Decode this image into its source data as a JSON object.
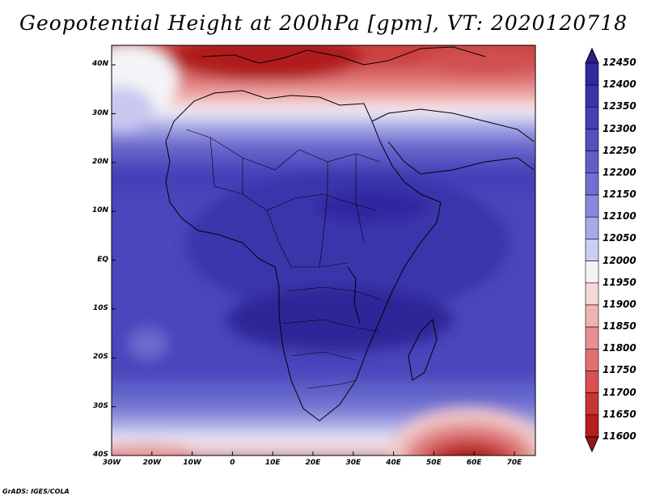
{
  "title": "Geopotential Height at 200hPa [gpm], VT: 2020120718",
  "credit": "GrADS: IGES/COLA",
  "map": {
    "lon_labels": [
      "30W",
      "20W",
      "10W",
      "0",
      "10E",
      "20E",
      "30E",
      "40E",
      "50E",
      "60E",
      "70E"
    ],
    "lat_labels": [
      "40N",
      "30N",
      "20N",
      "10N",
      "EQ",
      "10S",
      "20S",
      "30S",
      "40S"
    ],
    "lon_range": [
      -30,
      75
    ],
    "lat_range": [
      -40,
      44
    ],
    "field": "Geopotential Height",
    "level": "200hPa",
    "units": "gpm"
  },
  "colorbar": {
    "levels": [
      "12450",
      "12400",
      "12350",
      "12300",
      "12250",
      "12200",
      "12150",
      "12100",
      "12050",
      "12000",
      "11950",
      "11900",
      "11850",
      "11800",
      "11750",
      "11700",
      "11650",
      "11600"
    ],
    "colors": [
      "#2a1e8c",
      "#30289c",
      "#3a34ac",
      "#4540b8",
      "#5050c0",
      "#5e60c8",
      "#7070d0",
      "#8888dc",
      "#a8a8e8",
      "#cccef2",
      "#f4f4f8",
      "#f6d8d8",
      "#f0b4b4",
      "#e89090",
      "#e07070",
      "#d85050",
      "#c83434",
      "#b41e1e",
      "#9c1414"
    ]
  }
}
